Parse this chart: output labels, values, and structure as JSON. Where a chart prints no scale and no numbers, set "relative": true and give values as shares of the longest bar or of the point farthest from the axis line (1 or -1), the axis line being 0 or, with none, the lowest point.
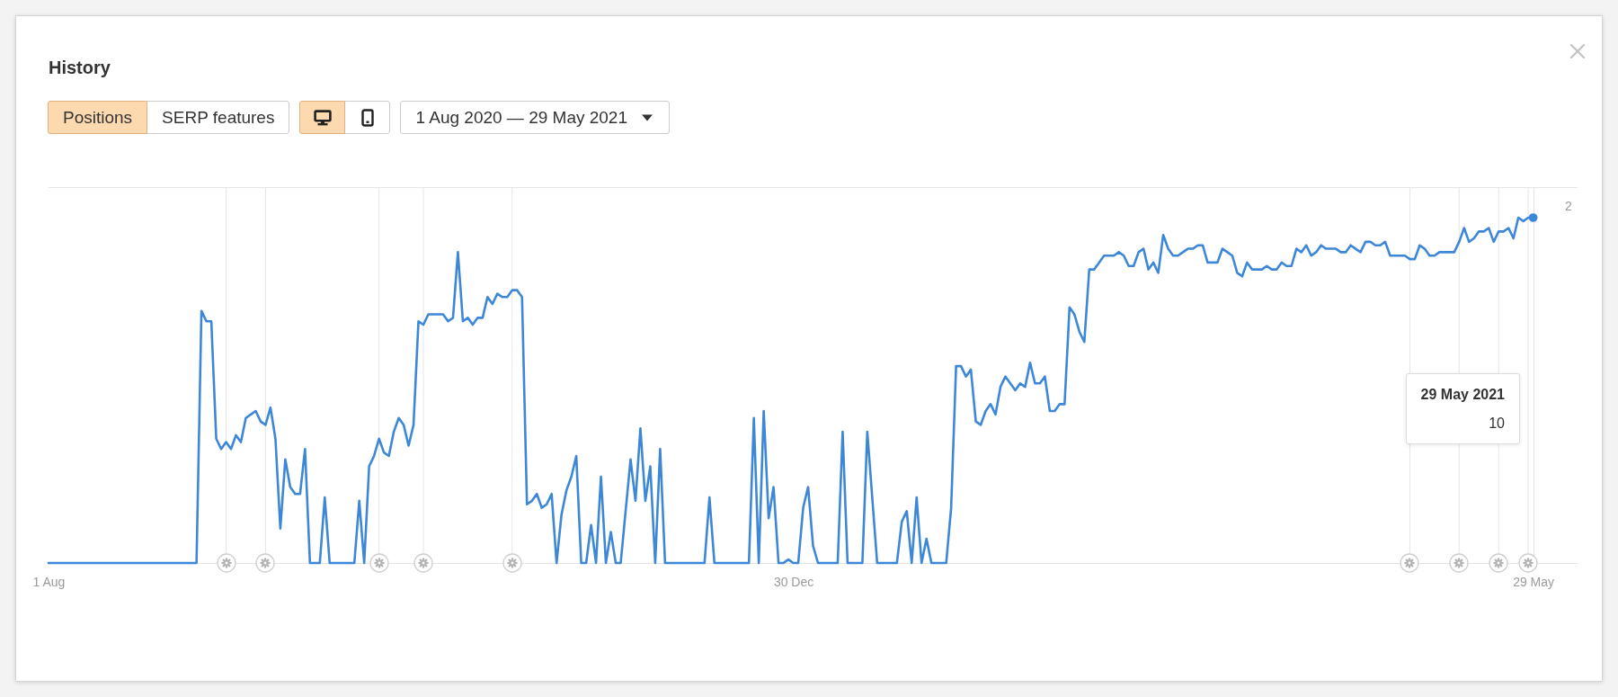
{
  "chart_data": {
    "type": "line",
    "title": "History",
    "relative": true,
    "annotations": [
      "Positions",
      "SERP features",
      "1 Aug 2020 — 29 May 2021",
      "2",
      "29 May 2021",
      "10"
    ],
    "xlim": [
      "2020-08-01",
      "2021-06-07"
    ],
    "xticks": [
      {
        "value": "2020-08-01",
        "label": "1 Aug"
      },
      {
        "value": "2020-12-30",
        "label": "30 Dec"
      },
      {
        "value": "2021-05-29",
        "label": "29 May"
      }
    ],
    "ref_lines": [
      {
        "axis": "x",
        "value": "2020-09-06",
        "label": null,
        "color": "#e6e6e6"
      },
      {
        "axis": "x",
        "value": "2020-09-14",
        "label": null,
        "color": "#e6e6e6"
      },
      {
        "axis": "x",
        "value": "2020-10-07",
        "label": null,
        "color": "#e6e6e6"
      },
      {
        "axis": "x",
        "value": "2020-10-16",
        "label": null,
        "color": "#e6e6e6"
      },
      {
        "axis": "x",
        "value": "2020-11-03",
        "label": null,
        "color": "#e6e6e6"
      },
      {
        "axis": "x",
        "value": "2021-05-04",
        "label": null,
        "color": "#e6e6e6"
      },
      {
        "axis": "x",
        "value": "2021-05-14",
        "label": null,
        "color": "#e6e6e6"
      },
      {
        "axis": "x",
        "value": "2021-05-22",
        "label": null,
        "color": "#e6e6e6"
      },
      {
        "axis": "x",
        "value": "2021-05-28",
        "label": null,
        "color": "#e6e6e6"
      }
    ],
    "x": [
      "2020-08-01",
      "2020-08-31",
      "2020-09-01",
      "2020-09-02",
      "2020-09-03",
      "2020-09-04",
      "2020-09-05",
      "2020-09-06",
      "2020-09-07",
      "2020-09-08",
      "2020-09-09",
      "2020-09-10",
      "2020-09-11",
      "2020-09-12",
      "2020-09-13",
      "2020-09-14",
      "2020-09-15",
      "2020-09-16",
      "2020-09-17",
      "2020-09-18",
      "2020-09-19",
      "2020-09-20",
      "2020-09-21",
      "2020-09-22",
      "2020-09-23",
      "2020-09-25",
      "2020-09-26",
      "2020-09-27",
      "2020-10-02",
      "2020-10-03",
      "2020-10-04",
      "2020-10-05",
      "2020-10-06",
      "2020-10-07",
      "2020-10-08",
      "2020-10-09",
      "2020-10-10",
      "2020-10-11",
      "2020-10-12",
      "2020-10-13",
      "2020-10-14",
      "2020-10-15",
      "2020-10-16",
      "2020-10-17",
      "2020-10-20",
      "2020-10-21",
      "2020-10-22",
      "2020-10-23",
      "2020-10-24",
      "2020-10-25",
      "2020-10-26",
      "2020-10-27",
      "2020-10-28",
      "2020-10-29",
      "2020-10-30",
      "2020-10-31",
      "2020-11-01",
      "2020-11-02",
      "2020-11-03",
      "2020-11-04",
      "2020-11-05",
      "2020-11-06",
      "2020-11-07",
      "2020-11-08",
      "2020-11-09",
      "2020-11-10",
      "2020-11-11",
      "2020-11-12",
      "2020-11-13",
      "2020-11-14",
      "2020-11-15",
      "2020-11-16",
      "2020-11-17",
      "2020-11-18",
      "2020-11-19",
      "2020-11-20",
      "2020-11-21",
      "2020-11-22",
      "2020-11-23",
      "2020-11-24",
      "2020-11-25",
      "2020-11-27",
      "2020-11-28",
      "2020-11-29",
      "2020-11-30",
      "2020-12-01",
      "2020-12-02",
      "2020-12-03",
      "2020-12-04",
      "2020-12-12",
      "2020-12-13",
      "2020-12-14",
      "2020-12-21",
      "2020-12-22",
      "2020-12-23",
      "2020-12-24",
      "2020-12-25",
      "2020-12-26",
      "2020-12-27",
      "2020-12-28",
      "2020-12-29",
      "2020-12-30",
      "2020-12-31",
      "2021-01-01",
      "2021-01-02",
      "2021-01-03",
      "2021-01-04",
      "2021-01-08",
      "2021-01-09",
      "2021-01-10",
      "2021-01-13",
      "2021-01-14",
      "2021-01-16",
      "2021-01-20",
      "2021-01-21",
      "2021-01-22",
      "2021-01-23",
      "2021-01-24",
      "2021-01-25",
      "2021-01-26",
      "2021-01-27",
      "2021-01-30",
      "2021-01-31",
      "2021-02-01",
      "2021-02-02",
      "2021-02-03",
      "2021-02-04",
      "2021-02-05",
      "2021-02-06",
      "2021-02-07",
      "2021-02-08",
      "2021-02-09",
      "2021-02-10",
      "2021-02-11",
      "2021-02-12",
      "2021-02-13",
      "2021-02-14",
      "2021-02-15",
      "2021-02-16",
      "2021-02-17",
      "2021-02-18",
      "2021-02-19",
      "2021-02-20",
      "2021-02-21",
      "2021-02-22",
      "2021-02-23",
      "2021-02-24",
      "2021-02-25",
      "2021-02-26",
      "2021-02-27",
      "2021-02-28",
      "2021-03-01",
      "2021-03-02",
      "2021-03-03",
      "2021-03-05",
      "2021-03-06",
      "2021-03-07",
      "2021-03-08",
      "2021-03-09",
      "2021-03-10",
      "2021-03-11",
      "2021-03-12",
      "2021-03-13",
      "2021-03-14",
      "2021-03-15",
      "2021-03-16",
      "2021-03-17",
      "2021-03-18",
      "2021-03-19",
      "2021-03-20",
      "2021-03-21",
      "2021-03-22",
      "2021-03-23",
      "2021-03-24",
      "2021-03-26",
      "2021-03-27",
      "2021-03-28",
      "2021-03-29",
      "2021-03-30",
      "2021-03-31",
      "2021-04-01",
      "2021-04-02",
      "2021-04-04",
      "2021-04-05",
      "2021-04-06",
      "2021-04-07",
      "2021-04-08",
      "2021-04-09",
      "2021-04-10",
      "2021-04-11",
      "2021-04-12",
      "2021-04-13",
      "2021-04-14",
      "2021-04-15",
      "2021-04-16",
      "2021-04-17",
      "2021-04-19",
      "2021-04-20",
      "2021-04-21",
      "2021-04-22",
      "2021-04-23",
      "2021-04-24",
      "2021-04-25",
      "2021-04-26",
      "2021-04-27",
      "2021-04-28",
      "2021-04-29",
      "2021-04-30",
      "2021-05-03",
      "2021-05-04",
      "2021-05-05",
      "2021-05-06",
      "2021-05-07",
      "2021-05-08",
      "2021-05-09",
      "2021-05-10",
      "2021-05-13",
      "2021-05-14",
      "2021-05-15",
      "2021-05-16",
      "2021-05-17",
      "2021-05-18",
      "2021-05-19",
      "2021-05-20",
      "2021-05-21",
      "2021-05-22",
      "2021-05-23",
      "2021-05-24",
      "2021-05-25",
      "2021-05-26",
      "2021-05-27",
      "2021-05-28",
      "2021-05-29"
    ],
    "series": [
      {
        "color": "#3d87d8",
        "values": [
          0,
          0,
          0.73,
          0.7,
          0.7,
          0.36,
          0.33,
          0.35,
          0.33,
          0.37,
          0.35,
          0.42,
          0.43,
          0.44,
          0.41,
          0.4,
          0.45,
          0.36,
          0.1,
          0.3,
          0.22,
          0.2,
          0.2,
          0.33,
          0,
          0,
          0.19,
          0,
          0,
          0.18,
          0,
          0.28,
          0.31,
          0.36,
          0.32,
          0.31,
          0.38,
          0.42,
          0.4,
          0.34,
          0.4,
          0.7,
          0.69,
          0.72,
          0.72,
          0.7,
          0.71,
          0.9,
          0.7,
          0.71,
          0.69,
          0.71,
          0.71,
          0.77,
          0.75,
          0.78,
          0.77,
          0.77,
          0.79,
          0.79,
          0.77,
          0.17,
          0.18,
          0.2,
          0.16,
          0.17,
          0.2,
          0,
          0.14,
          0.21,
          0.25,
          0.31,
          0,
          0,
          0.11,
          0,
          0.25,
          0,
          0.09,
          0,
          0,
          0.3,
          0.18,
          0.39,
          0.18,
          0.28,
          0,
          0.33,
          0,
          0,
          0.19,
          0,
          0,
          0.42,
          0,
          0.44,
          0.13,
          0.22,
          0,
          0,
          0.01,
          0,
          0,
          0.16,
          0.22,
          0.05,
          0,
          0,
          0.38,
          0,
          0,
          0.38,
          0,
          0,
          0.12,
          0.15,
          0,
          0.19,
          0,
          0.07,
          0,
          0,
          0.16,
          0.57,
          0.57,
          0.54,
          0.56,
          0.41,
          0.4,
          0.44,
          0.46,
          0.43,
          0.51,
          0.54,
          0.52,
          0.5,
          0.52,
          0.51,
          0.58,
          0.52,
          0.52,
          0.54,
          0.44,
          0.44,
          0.46,
          0.46,
          0.74,
          0.72,
          0.67,
          0.64,
          0.85,
          0.85,
          0.87,
          0.89,
          0.89,
          0.9,
          0.89,
          0.86,
          0.86,
          0.9,
          0.91,
          0.85,
          0.87,
          0.84,
          0.95,
          0.91,
          0.89,
          0.89,
          0.9,
          0.91,
          0.91,
          0.92,
          0.92,
          0.87,
          0.87,
          0.91,
          0.9,
          0.89,
          0.84,
          0.83,
          0.87,
          0.85,
          0.85,
          0.86,
          0.85,
          0.85,
          0.87,
          0.86,
          0.86,
          0.91,
          0.9,
          0.92,
          0.89,
          0.9,
          0.92,
          0.91,
          0.91,
          0.9,
          0.9,
          0.92,
          0.91,
          0.9,
          0.93,
          0.93,
          0.92,
          0.92,
          0.93,
          0.89,
          0.89,
          0.88,
          0.88,
          0.92,
          0.91,
          0.89,
          0.89,
          0.9,
          0.9,
          0.93,
          0.97,
          0.93,
          0.94,
          0.96,
          0.96,
          0.97,
          0.93,
          0.96,
          0.96,
          0.97,
          0.94,
          1,
          0.99,
          1,
          1
        ]
      }
    ]
  }
}
